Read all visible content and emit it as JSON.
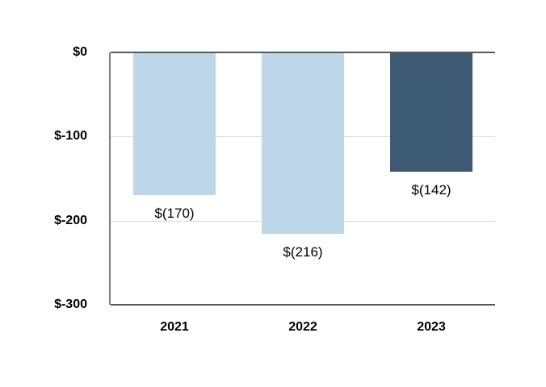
{
  "chart_data": {
    "type": "bar",
    "categories": [
      "2021",
      "2022",
      "2023"
    ],
    "values": [
      -170,
      -216,
      -142
    ],
    "data_labels": [
      "$(170)",
      "$(216)",
      "$(142)"
    ],
    "bar_colors": [
      "#BDD6EA",
      "#BDD6EA",
      "#3D5A75"
    ],
    "title": "",
    "xlabel": "",
    "ylabel": "",
    "ylim": [
      -300,
      0
    ],
    "yticks": [
      0,
      -100,
      -200,
      -300
    ],
    "ytick_labels": [
      "$0",
      "$-100",
      "$-200",
      "$-300"
    ],
    "gridlines_at": [
      -100,
      -200
    ],
    "grid": true,
    "legend_position": "none",
    "colors": {
      "background": "#ffffff",
      "zero_axis_line": "#595959",
      "bottom_border_line": "#595959",
      "left_axis_line": "#7f7f7f",
      "gridline": "#DCDCDC",
      "text": "#000000"
    }
  }
}
